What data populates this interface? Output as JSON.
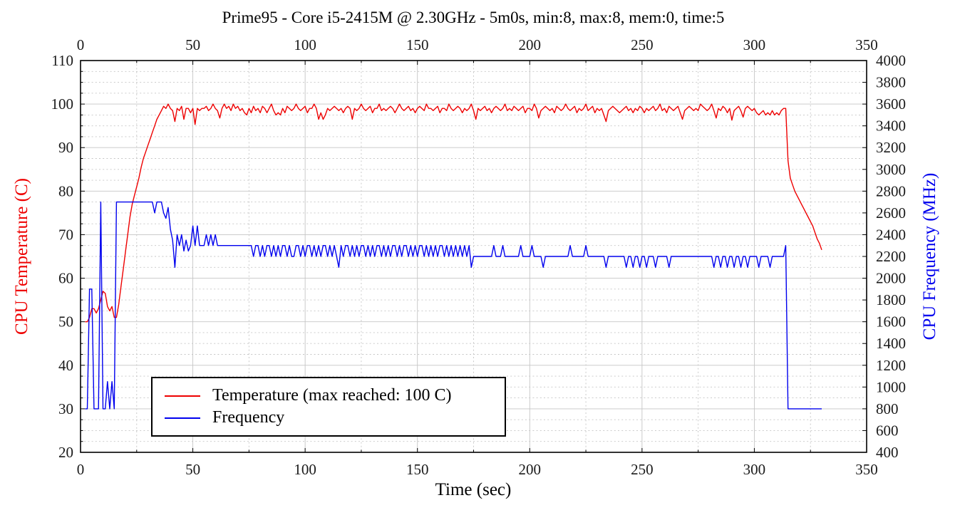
{
  "title": "Prime95 - Core i5-2415M @ 2.30GHz - 5m0s, min:8, max:8, mem:0, time:5",
  "axes": {
    "x": {
      "label": "Time (sec)",
      "min": 0,
      "max": 350,
      "major_ticks": [
        0,
        50,
        100,
        150,
        200,
        250,
        300,
        350
      ],
      "minor_step": 25,
      "mirror_labels_top": true
    },
    "y_left": {
      "label": "CPU Temperature (C)",
      "color": "#ee0000",
      "min": 20,
      "max": 110,
      "major_ticks": [
        20,
        30,
        40,
        50,
        60,
        70,
        80,
        90,
        100,
        110
      ],
      "minor_step": 2.5
    },
    "y_right": {
      "label": "CPU Frequency (MHz)",
      "color": "#0000ee",
      "min": 400,
      "max": 4000,
      "major_ticks": [
        400,
        600,
        800,
        1000,
        1200,
        1400,
        1600,
        1800,
        2000,
        2200,
        2400,
        2600,
        2800,
        3000,
        3200,
        3400,
        3600,
        3800,
        4000
      ]
    }
  },
  "legend": {
    "position": "bottom-left-inside",
    "items": [
      {
        "label": "Temperature (max reached: 100 C)",
        "color": "#ee0000"
      },
      {
        "label": "Frequency",
        "color": "#0000ee"
      }
    ]
  },
  "colors": {
    "grid": "#c5c5c5",
    "frame": "#000000",
    "background": "#ffffff",
    "temperature": "#ee0000",
    "frequency": "#0000ee"
  },
  "chart_data": {
    "type": "line",
    "title": "Prime95 - Core i5-2415M @ 2.30GHz - 5m0s, min:8, max:8, mem:0, time:5",
    "xlabel": "Time (sec)",
    "ylabel_left": "CPU Temperature (C)",
    "ylabel_right": "CPU Frequency (MHz)",
    "xlim": [
      0,
      350
    ],
    "ylim_left": [
      20,
      110
    ],
    "ylim_right": [
      400,
      4000
    ],
    "grid": "major 50s/10C solid, minor 25s/2.5C dashed",
    "legend_position": "bottom inside plot",
    "sampling": "1 sample per second, t = 2..330 sec",
    "series": [
      {
        "name": "Temperature",
        "units": "C",
        "axis": "left",
        "color": "#ee0000",
        "max_reached": 100,
        "segments": [
          {
            "t0": 2,
            "dt": 1,
            "values": [
              50,
              50,
              51,
              53,
              53,
              52,
              53,
              55,
              57,
              56.5,
              53.5,
              52.5,
              53.5,
              51,
              51
            ]
          },
          {
            "t0": 17,
            "dt": 1,
            "values": [
              54,
              58,
              62,
              66,
              70,
              74,
              77,
              79,
              81,
              83,
              85.5,
              87.5,
              89,
              90.5,
              92,
              93.5,
              95,
              96.5,
              97.5,
              98.5
            ]
          },
          {
            "t0": 37,
            "dt": 1,
            "values": [
              99.5,
              99,
              100,
              99,
              98.5,
              96,
              99,
              98.5,
              99.5,
              96.5,
              99,
              99,
              98,
              99,
              95.3,
              99,
              98.5,
              99,
              99,
              99.5
            ]
          },
          {
            "t0": 57,
            "dt": 1,
            "values": [
              98.5,
              99,
              100,
              99,
              98.5,
              96.8,
              99,
              100,
              99,
              99.5,
              98.5,
              100,
              99,
              99.5,
              98.5,
              99,
              98,
              97.5,
              99,
              98
            ]
          },
          {
            "t0": 77,
            "dt": 1,
            "values": [
              99.5,
              98.5,
              99,
              98,
              99.5,
              99,
              98,
              99,
              100,
              98.5,
              97.5,
              98,
              97.5,
              99,
              98,
              99.5,
              99,
              98.5,
              99,
              100
            ]
          },
          {
            "t0": 97,
            "dt": 1,
            "values": [
              99,
              98.5,
              99,
              99.5,
              98,
              99,
              99,
              100,
              99,
              96.5,
              98,
              96.5,
              97.5,
              99,
              98.5,
              99,
              99.5,
              99,
              98.5,
              99
            ]
          },
          {
            "t0": 117,
            "dt": 1,
            "values": [
              98,
              99,
              99.5,
              99,
              96.5,
              99,
              98.5,
              99,
              100,
              99,
              98.5,
              99,
              99.5,
              98,
              99,
              99,
              100,
              98.5,
              99,
              98.5
            ]
          },
          {
            "t0": 137,
            "dt": 1,
            "values": [
              99,
              99.5,
              99,
              98,
              99,
              100,
              99,
              98.5,
              99,
              99.5,
              98.5,
              99,
              98,
              99,
              99.5,
              99,
              98.5,
              100,
              99,
              99
            ]
          },
          {
            "t0": 157,
            "dt": 1,
            "values": [
              98.5,
              99,
              99.5,
              98,
              99,
              99,
              98.5,
              100,
              99,
              98.5,
              99,
              99.5,
              99,
              98,
              99,
              98.5,
              99,
              100,
              98.5,
              96.5
            ]
          },
          {
            "t0": 177,
            "dt": 1,
            "values": [
              99,
              98.5,
              99,
              99.5,
              98.5,
              99,
              98,
              99,
              99.5,
              99,
              98.5,
              99,
              100,
              98.5,
              99,
              98.5,
              99.5,
              99,
              98.5,
              99
            ]
          },
          {
            "t0": 197,
            "dt": 1,
            "values": [
              99.5,
              98,
              99,
              99,
              98.5,
              100,
              99,
              96.8,
              98.5,
              99,
              99.5,
              99,
              98.5,
              99,
              98,
              99.5,
              99,
              98.5,
              99,
              100
            ]
          },
          {
            "t0": 217,
            "dt": 1,
            "values": [
              99,
              98.5,
              99,
              99.5,
              98,
              99,
              98.5,
              99,
              100,
              98.5,
              99,
              99.5,
              98,
              99,
              98.5,
              99,
              97.5,
              96,
              98.5,
              99
            ]
          },
          {
            "t0": 237,
            "dt": 1,
            "values": [
              99.5,
              99,
              98.5,
              98,
              98.5,
              99,
              99.5,
              98.5,
              99,
              98,
              99,
              98.5,
              99.5,
              99,
              98,
              99,
              98.5,
              99,
              99.5,
              98.5
            ]
          },
          {
            "t0": 257,
            "dt": 1,
            "values": [
              99,
              100,
              98.5,
              99,
              98,
              99.5,
              99,
              98.5,
              99,
              99.5,
              98,
              96.5,
              98.5,
              99,
              99.5,
              99,
              98.5,
              99,
              98.5,
              100
            ]
          },
          {
            "t0": 277,
            "dt": 1,
            "values": [
              99.5,
              99,
              98.5,
              99,
              100,
              98.5,
              96.8,
              99,
              98.5,
              99.5,
              99,
              98,
              99,
              96.3,
              98.5,
              99,
              99.5,
              98.5,
              97,
              99
            ]
          },
          {
            "t0": 297,
            "dt": 1,
            "values": [
              99.5,
              99,
              98.5,
              99,
              98,
              97.5,
              98,
              98.5,
              97.5,
              98,
              97.5,
              98.5,
              97.5,
              98,
              97.5,
              98.5,
              99,
              99
            ]
          },
          {
            "t0": 315,
            "dt": 1,
            "values": [
              87,
              83,
              81.5,
              80,
              79,
              78,
              77,
              76,
              75,
              74,
              73,
              72,
              70.5,
              69,
              68,
              66.5
            ]
          }
        ]
      },
      {
        "name": "Frequency",
        "units": "MHz",
        "axis": "right",
        "color": "#0000ee",
        "segments": [
          {
            "t0": 2,
            "dt": 1,
            "values": [
              800,
              800,
              1900,
              1900,
              800,
              800,
              800,
              2700,
              800,
              800,
              1050,
              800,
              1050,
              800,
              2700
            ]
          },
          {
            "t0": 17,
            "dt": 1,
            "values": [
              2700,
              2700,
              2700,
              2700,
              2700,
              2700,
              2700,
              2700,
              2700,
              2700,
              2700,
              2700,
              2700,
              2700,
              2700,
              2700,
              2600,
              2700,
              2700,
              2700
            ]
          },
          {
            "t0": 37,
            "dt": 1,
            "values": [
              2600,
              2550,
              2650,
              2450,
              2350,
              2100,
              2400,
              2300,
              2400,
              2250,
              2350,
              2250,
              2300,
              2480,
              2300,
              2480,
              2300,
              2300,
              2300
            ]
          },
          {
            "t0": 56,
            "dt": 1,
            "values": [
              2400,
              2300,
              2400,
              2300,
              2400
            ]
          },
          {
            "t0": 61,
            "dt": 1,
            "values": [
              2300,
              2300,
              2300,
              2300,
              2300,
              2300,
              2300,
              2300,
              2300,
              2300,
              2300,
              2300,
              2300,
              2300,
              2300,
              2300
            ]
          },
          {
            "t0": 77,
            "dt": 1,
            "values": [
              2200,
              2300,
              2300,
              2200,
              2300,
              2200,
              2300,
              2300,
              2200,
              2300,
              2200,
              2300,
              2200,
              2300,
              2300,
              2200,
              2300,
              2200,
              2200,
              2300,
              2300,
              2200,
              2300,
              2200,
              2300,
              2300,
              2200,
              2300,
              2200,
              2300,
              2200,
              2300,
              2300,
              2200,
              2300,
              2200,
              2300,
              2200,
              2100
            ]
          },
          {
            "t0": 116,
            "dt": 1,
            "values": [
              2300,
              2200,
              2300,
              2300,
              2200,
              2300,
              2200,
              2300,
              2200,
              2300,
              2300,
              2200,
              2300,
              2200,
              2300,
              2200,
              2300,
              2300,
              2200,
              2300,
              2200,
              2300,
              2200,
              2300,
              2300,
              2200,
              2300,
              2200,
              2300,
              2300,
              2200,
              2300,
              2200,
              2300,
              2200,
              2300,
              2300,
              2200,
              2300,
              2200
            ]
          },
          {
            "t0": 156,
            "dt": 1,
            "values": [
              2300,
              2200,
              2300,
              2200,
              2300,
              2300,
              2200,
              2300,
              2200,
              2300,
              2200,
              2300,
              2200,
              2300,
              2200,
              2300,
              2200,
              2300,
              2100,
              2200
            ]
          },
          {
            "t0": 176,
            "dt": 1,
            "values": [
              2200,
              2200,
              2200,
              2200,
              2200,
              2200,
              2200,
              2200
            ]
          },
          {
            "t0": 184,
            "dt": 1,
            "values": [
              2300,
              2200,
              2200,
              2200,
              2300,
              2200,
              2200,
              2200,
              2200,
              2200,
              2200,
              2200,
              2300,
              2200,
              2200,
              2200,
              2200,
              2300,
              2200,
              2200,
              2200,
              2200,
              2100,
              2200,
              2200,
              2200,
              2200,
              2200,
              2200,
              2200,
              2200,
              2200,
              2200,
              2200,
              2300,
              2200,
              2200,
              2200,
              2200,
              2200,
              2200,
              2300,
              2200,
              2200,
              2200,
              2200,
              2200,
              2200,
              2200,
              2200
            ]
          },
          {
            "t0": 234,
            "dt": 1,
            "values": [
              2100,
              2200,
              2200,
              2200,
              2200,
              2200,
              2200,
              2200,
              2200,
              2100,
              2200,
              2200,
              2100,
              2200,
              2200,
              2100,
              2200,
              2200,
              2100,
              2200,
              2200,
              2200,
              2100,
              2200,
              2200,
              2200,
              2200,
              2200,
              2100
            ]
          },
          {
            "t0": 263,
            "dt": 1,
            "values": [
              2200,
              2200,
              2200,
              2200,
              2200,
              2200,
              2200,
              2200,
              2200,
              2200,
              2200,
              2200,
              2200,
              2200,
              2200,
              2200,
              2200,
              2200,
              2200
            ]
          },
          {
            "t0": 282,
            "dt": 1,
            "values": [
              2100,
              2200,
              2200,
              2100,
              2200,
              2200,
              2100,
              2200,
              2200,
              2100,
              2200,
              2200,
              2100,
              2200,
              2200,
              2100,
              2200,
              2200,
              2200,
              2200,
              2100,
              2200,
              2200,
              2200,
              2200,
              2100,
              2200,
              2200,
              2200,
              2200,
              2200,
              2200
            ]
          },
          {
            "t0": 314,
            "dt": 1,
            "values": [
              2300,
              800,
              800,
              800,
              800,
              800,
              800,
              800,
              800,
              800,
              800,
              800,
              800,
              800,
              800,
              800,
              800
            ]
          }
        ]
      }
    ]
  }
}
